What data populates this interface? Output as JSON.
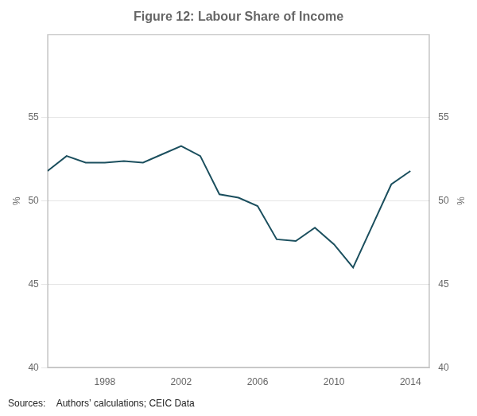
{
  "chart_data": {
    "type": "line",
    "title": "Figure 12: Labour Share of Income",
    "x": [
      1995,
      1996,
      1997,
      1998,
      1999,
      2000,
      2001,
      2002,
      2003,
      2004,
      2005,
      2006,
      2007,
      2008,
      2009,
      2010,
      2011,
      2012,
      2013,
      2014
    ],
    "values": [
      51.8,
      52.7,
      52.3,
      52.3,
      52.4,
      52.3,
      52.8,
      53.3,
      52.7,
      50.4,
      50.2,
      49.7,
      47.7,
      47.6,
      48.4,
      47.4,
      46.0,
      48.5,
      51.0,
      51.8
    ],
    "color": "#1b4f5e",
    "xlim": [
      1995,
      2015
    ],
    "xticks": [
      1998,
      2002,
      2006,
      2010,
      2014
    ],
    "ylim": [
      40,
      60
    ],
    "yticks": [
      40,
      45,
      50,
      55
    ],
    "y2lim": [
      40,
      60
    ],
    "y2ticks": [
      40,
      45,
      50,
      55
    ],
    "y_label": "%",
    "y2_label": "%",
    "grid": "y",
    "source": "Sources:    Authors’ calculations; CEIC Data"
  }
}
